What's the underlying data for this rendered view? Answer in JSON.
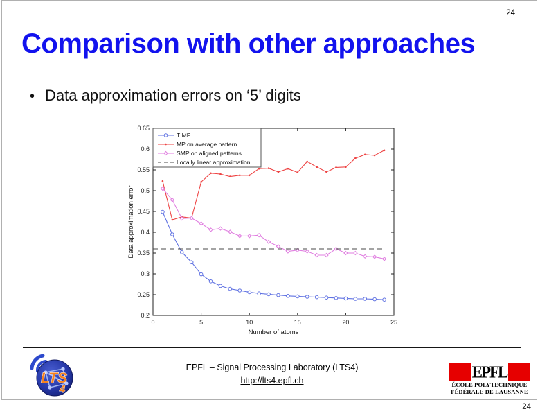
{
  "slide": {
    "page_number_top": "24",
    "page_number_bottom": "24",
    "title": "Comparison with other approaches",
    "bullet_glyph": "•",
    "bullet": "Data approximation errors on ‘5’ digits"
  },
  "footer": {
    "lab_line": "EPFL – Signal Processing Laboratory (LTS4)",
    "link": "http://lts4.epfl.ch",
    "lts4_logo": {
      "text": "LTS",
      "digit": "4"
    },
    "epfl_logo": {
      "glyph": "EPFL",
      "caption_line1": "ÉCOLE POLYTECHNIQUE",
      "caption_line2": "FÉDÉRALE DE LAUSANNE"
    }
  },
  "colors": {
    "title_blue": "#1212ee",
    "epfl_red": "#e60000",
    "timp_blue": "#6072e2",
    "mp_red": "#ee4545",
    "smp_magenta": "#e07ee0",
    "dashed_gray": "#4a4a4a",
    "axes": "#222222"
  },
  "chart_data": {
    "type": "line",
    "title": "",
    "xlabel": "Number of atoms",
    "ylabel": "Data approximation error",
    "xlim": [
      0,
      25
    ],
    "ylim": [
      0.2,
      0.65
    ],
    "xticks": [
      0,
      5,
      10,
      15,
      20,
      25
    ],
    "yticks": [
      "0.2",
      "0.25",
      "0.3",
      "0.35",
      "0.4",
      "0.45",
      "0.5",
      "0.55",
      "0.6",
      "0.65"
    ],
    "grid": false,
    "legend_position": "top-left",
    "x": [
      1,
      2,
      3,
      4,
      5,
      6,
      7,
      8,
      9,
      10,
      11,
      12,
      13,
      14,
      15,
      16,
      17,
      18,
      19,
      20,
      21,
      22,
      23,
      24
    ],
    "series": [
      {
        "name": "TIMP",
        "color": "#6072e2",
        "marker": "circle",
        "line": "solid",
        "values": [
          0.449,
          0.395,
          0.352,
          0.328,
          0.299,
          0.282,
          0.271,
          0.264,
          0.26,
          0.256,
          0.253,
          0.251,
          0.249,
          0.247,
          0.246,
          0.245,
          0.244,
          0.243,
          0.242,
          0.241,
          0.24,
          0.24,
          0.239,
          0.238
        ]
      },
      {
        "name": "MP on average pattern",
        "color": "#ee4545",
        "marker": "dot",
        "line": "solid",
        "values": [
          0.523,
          0.43,
          0.437,
          0.434,
          0.521,
          0.542,
          0.54,
          0.534,
          0.537,
          0.537,
          0.553,
          0.554,
          0.545,
          0.553,
          0.544,
          0.57,
          0.557,
          0.545,
          0.556,
          0.557,
          0.578,
          0.587,
          0.585,
          0.597
        ]
      },
      {
        "name": "SMP on aligned patterns",
        "color": "#e07ee0",
        "marker": "diamond",
        "line": "solid",
        "values": [
          0.505,
          0.478,
          0.433,
          0.434,
          0.421,
          0.406,
          0.409,
          0.401,
          0.391,
          0.391,
          0.393,
          0.377,
          0.366,
          0.354,
          0.357,
          0.354,
          0.345,
          0.345,
          0.36,
          0.35,
          0.35,
          0.342,
          0.341,
          0.336
        ]
      },
      {
        "name": "Locally linear approximation",
        "color": "#4a4a4a",
        "marker": "none",
        "line": "dashed",
        "x": [
          0,
          24
        ],
        "values": [
          0.36,
          0.36
        ]
      }
    ]
  }
}
